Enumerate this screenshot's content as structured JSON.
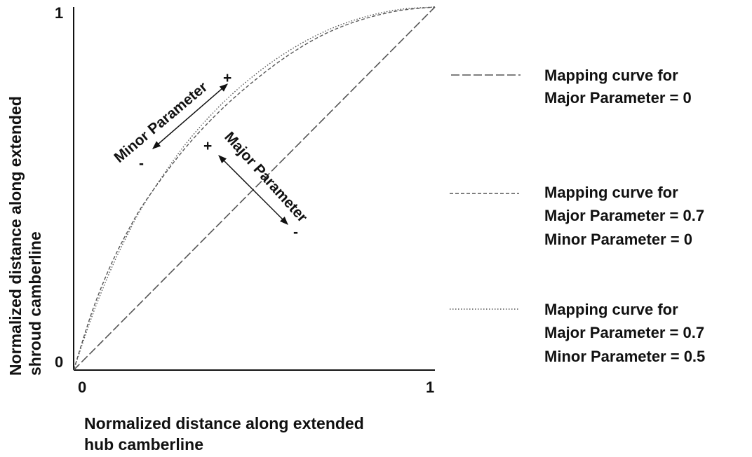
{
  "chart_data": {
    "type": "line",
    "xlabel": [
      "Normalized distance along extended",
      "hub camberline"
    ],
    "ylabel": [
      "Normalized distance along extended",
      "shroud camberline"
    ],
    "xlim": [
      0,
      1
    ],
    "ylim": [
      0,
      1
    ],
    "x_ticks": [
      "0",
      "1"
    ],
    "y_ticks": [
      "0",
      "1"
    ],
    "grid": false,
    "legend_position": "right",
    "series": [
      {
        "name": [
          "Mapping curve for",
          "Major Parameter = 0"
        ],
        "line_style": "long-dash",
        "x": [
          0,
          0.25,
          0.5,
          0.75,
          1
        ],
        "y": [
          0,
          0.25,
          0.5,
          0.75,
          1
        ]
      },
      {
        "name": [
          "Mapping curve for",
          "Major Parameter = 0.7",
          "Minor Parameter = 0"
        ],
        "line_style": "short-dash",
        "x": [
          0,
          0.05,
          0.1,
          0.15,
          0.2,
          0.3,
          0.4,
          0.5,
          0.6,
          0.7,
          0.8,
          0.9,
          1
        ],
        "y": [
          0,
          0.158,
          0.283,
          0.383,
          0.467,
          0.601,
          0.709,
          0.797,
          0.871,
          0.928,
          0.966,
          0.99,
          1
        ]
      },
      {
        "name": [
          "Mapping curve for",
          "Major Parameter = 0.7",
          "Minor Parameter = 0.5"
        ],
        "line_style": "dotted",
        "x": [
          0,
          0.05,
          0.1,
          0.15,
          0.2,
          0.3,
          0.4,
          0.5,
          0.6,
          0.7,
          0.8,
          0.9,
          1
        ],
        "y": [
          0,
          0.146,
          0.27,
          0.375,
          0.465,
          0.61,
          0.723,
          0.812,
          0.882,
          0.935,
          0.971,
          0.993,
          1
        ]
      }
    ],
    "annotations": [
      {
        "text": "Minor Parameter",
        "plus": "+",
        "minus": "-"
      },
      {
        "text": "Major Parameter",
        "plus": "+",
        "minus": "-"
      }
    ]
  }
}
